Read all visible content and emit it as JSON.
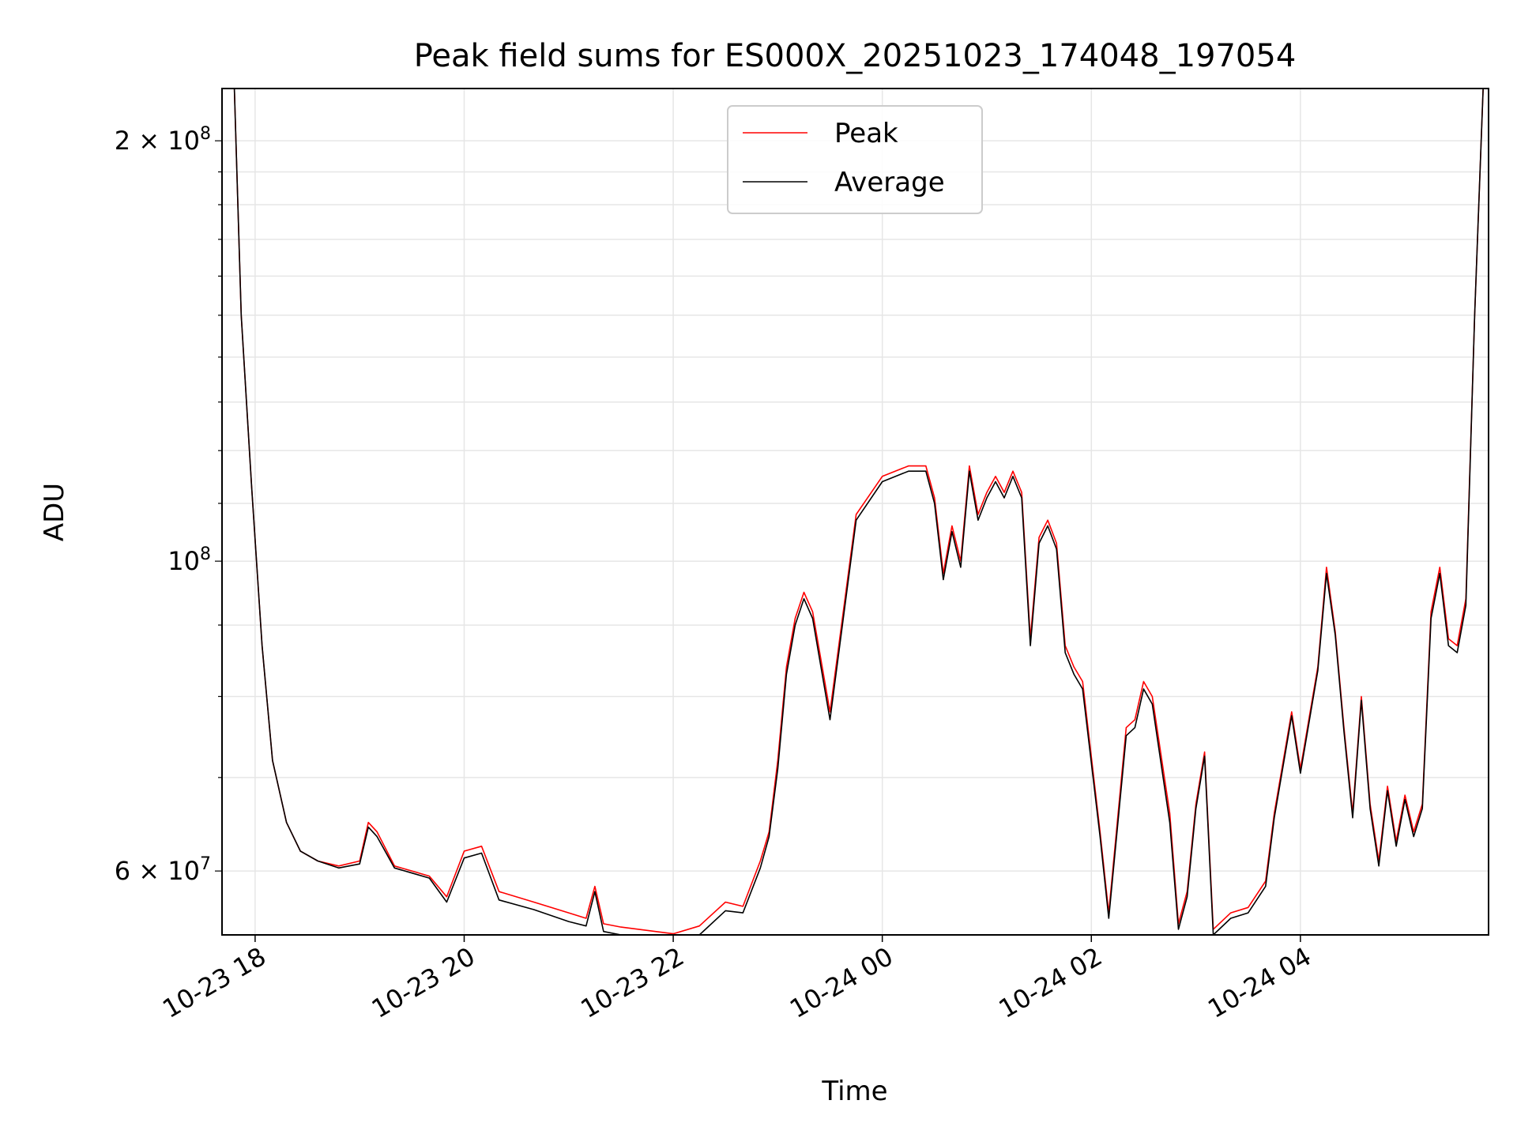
{
  "chart_data": {
    "type": "line",
    "title": "Peak field sums for ES000X_20251023_174048_197054",
    "xlabel": "Time",
    "ylabel": "ADU",
    "yscale": "log",
    "grid": true,
    "legend_position": "top-center",
    "xlim": [
      "2025-10-23 17:41",
      "2025-10-24 05:48"
    ],
    "ylim": [
      54000000,
      218000000
    ],
    "x_ticks": [
      "10-23 18",
      "10-23 20",
      "10-23 22",
      "10-24 00",
      "10-24 02",
      "10-24 04"
    ],
    "y_ticks": [
      "2 × 10^8",
      "10^8",
      "6 × 10^7"
    ],
    "colors": {
      "Peak": "#ff0000",
      "Average": "#000000"
    },
    "x": [
      "2025-10-23 17:48",
      "2025-10-23 17:52",
      "2025-10-23 17:58",
      "2025-10-23 18:04",
      "2025-10-23 18:10",
      "2025-10-23 18:18",
      "2025-10-23 18:26",
      "2025-10-23 18:36",
      "2025-10-23 18:48",
      "2025-10-23 19:00",
      "2025-10-23 19:05",
      "2025-10-23 19:10",
      "2025-10-23 19:20",
      "2025-10-23 19:30",
      "2025-10-23 19:40",
      "2025-10-23 19:50",
      "2025-10-23 20:00",
      "2025-10-23 20:10",
      "2025-10-23 20:20",
      "2025-10-23 20:40",
      "2025-10-23 21:00",
      "2025-10-23 21:10",
      "2025-10-23 21:15",
      "2025-10-23 21:20",
      "2025-10-23 21:30",
      "2025-10-23 21:45",
      "2025-10-23 22:00",
      "2025-10-23 22:15",
      "2025-10-23 22:30",
      "2025-10-23 22:40",
      "2025-10-23 22:50",
      "2025-10-23 22:55",
      "2025-10-23 23:00",
      "2025-10-23 23:05",
      "2025-10-23 23:10",
      "2025-10-23 23:15",
      "2025-10-23 23:20",
      "2025-10-23 23:30",
      "2025-10-23 23:45",
      "2025-10-24 00:00",
      "2025-10-24 00:15",
      "2025-10-24 00:25",
      "2025-10-24 00:30",
      "2025-10-24 00:35",
      "2025-10-24 00:40",
      "2025-10-24 00:45",
      "2025-10-24 00:50",
      "2025-10-24 00:55",
      "2025-10-24 01:00",
      "2025-10-24 01:05",
      "2025-10-24 01:10",
      "2025-10-24 01:15",
      "2025-10-24 01:20",
      "2025-10-24 01:25",
      "2025-10-24 01:30",
      "2025-10-24 01:35",
      "2025-10-24 01:40",
      "2025-10-24 01:45",
      "2025-10-24 01:50",
      "2025-10-24 01:55",
      "2025-10-24 02:05",
      "2025-10-24 02:10",
      "2025-10-24 02:20",
      "2025-10-24 02:25",
      "2025-10-24 02:30",
      "2025-10-24 02:35",
      "2025-10-24 02:45",
      "2025-10-24 02:50",
      "2025-10-24 02:55",
      "2025-10-24 03:00",
      "2025-10-24 03:05",
      "2025-10-24 03:10",
      "2025-10-24 03:20",
      "2025-10-24 03:30",
      "2025-10-24 03:40",
      "2025-10-24 03:45",
      "2025-10-24 03:55",
      "2025-10-24 04:00",
      "2025-10-24 04:10",
      "2025-10-24 04:15",
      "2025-10-24 04:20",
      "2025-10-24 04:25",
      "2025-10-24 04:30",
      "2025-10-24 04:35",
      "2025-10-24 04:40",
      "2025-10-24 04:45",
      "2025-10-24 04:50",
      "2025-10-24 04:55",
      "2025-10-24 05:00",
      "2025-10-24 05:05",
      "2025-10-24 05:10",
      "2025-10-24 05:15",
      "2025-10-24 05:20",
      "2025-10-24 05:25",
      "2025-10-24 05:30",
      "2025-10-24 05:35",
      "2025-10-24 05:40",
      "2025-10-24 05:45"
    ],
    "series": [
      {
        "name": "Peak",
        "values": [
          220000000,
          150000000,
          113000000,
          87000000,
          72000000,
          65000000,
          62000000,
          61000000,
          60500000,
          61000000,
          65000000,
          64000000,
          60500000,
          60000000,
          59500000,
          57500000,
          62000000,
          62500000,
          58000000,
          57000000,
          56000000,
          55500000,
          58500000,
          55000000,
          54700000,
          54400000,
          54100000,
          54800000,
          57000000,
          56600000,
          61000000,
          64000000,
          72000000,
          84000000,
          91000000,
          95000000,
          92000000,
          78000000,
          108000000,
          115000000,
          117000000,
          117000000,
          111000000,
          98000000,
          106000000,
          100000000,
          117000000,
          108000000,
          112000000,
          115000000,
          112000000,
          116000000,
          112000000,
          88000000,
          104000000,
          107000000,
          103000000,
          87000000,
          84000000,
          82000000,
          64000000,
          56000000,
          76000000,
          77000000,
          82000000,
          80000000,
          66000000,
          55000000,
          58000000,
          67000000,
          73000000,
          54500000,
          56000000,
          56500000,
          59000000,
          66000000,
          78000000,
          71000000,
          84000000,
          99000000,
          89000000,
          76000000,
          66000000,
          80000000,
          67000000,
          61000000,
          69000000,
          63000000,
          68000000,
          64000000,
          67000000,
          92000000,
          99000000,
          88000000,
          87000000,
          94000000,
          150000000,
          220000000
        ]
      },
      {
        "name": "Average",
        "values": [
          220000000,
          150000000,
          113000000,
          87000000,
          72000000,
          65000000,
          62000000,
          61000000,
          60300000,
          60700000,
          64500000,
          63500000,
          60300000,
          59800000,
          59300000,
          57000000,
          61300000,
          61800000,
          57200000,
          56300000,
          55200000,
          54800000,
          58000000,
          54300000,
          54000000,
          53700000,
          53500000,
          54000000,
          56200000,
          56000000,
          60300000,
          63500000,
          71000000,
          83000000,
          90000000,
          94000000,
          91000000,
          77000000,
          107000000,
          114000000,
          116000000,
          116000000,
          110000000,
          97000000,
          105000000,
          99000000,
          116000000,
          107000000,
          111000000,
          114000000,
          111000000,
          115000000,
          111000000,
          87000000,
          103000000,
          106000000,
          102000000,
          86000000,
          83000000,
          81000000,
          63500000,
          55500000,
          75000000,
          76000000,
          81000000,
          79000000,
          65000000,
          54500000,
          57500000,
          66500000,
          72500000,
          54000000,
          55500000,
          56000000,
          58500000,
          65500000,
          77500000,
          70500000,
          83500000,
          98000000,
          88500000,
          75500000,
          65500000,
          79500000,
          66500000,
          60500000,
          68500000,
          62500000,
          67500000,
          63500000,
          66500000,
          91000000,
          98000000,
          87000000,
          86000000,
          93000000,
          150000000,
          220000000
        ]
      }
    ]
  }
}
